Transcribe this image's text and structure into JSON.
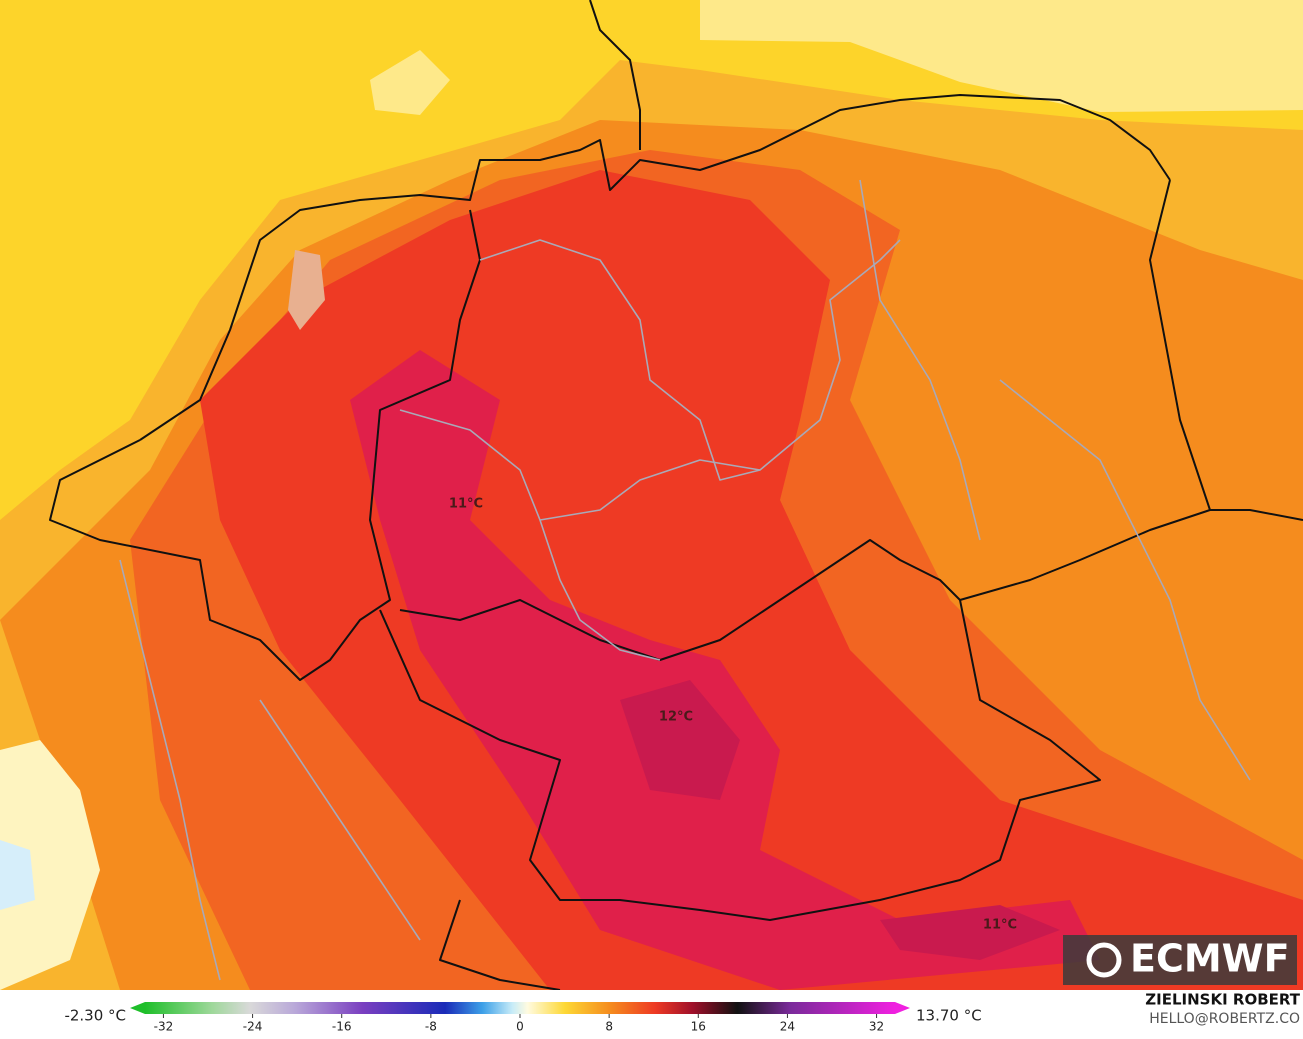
{
  "map": {
    "labels": [
      "11°C",
      "12°C",
      "11°C"
    ],
    "logo": "ECMWF",
    "credit": {
      "name": "ZIELINSKI ROBERT",
      "contact": "HELLO@ROBERTZ.CO"
    }
  },
  "colorbar": {
    "min_label": "-2.30 °C",
    "max_label": "13.70 °C",
    "lim": [
      -35,
      35
    ],
    "ticks": [
      -32,
      -24,
      -16,
      -8,
      0,
      8,
      16,
      24,
      32
    ]
  }
}
